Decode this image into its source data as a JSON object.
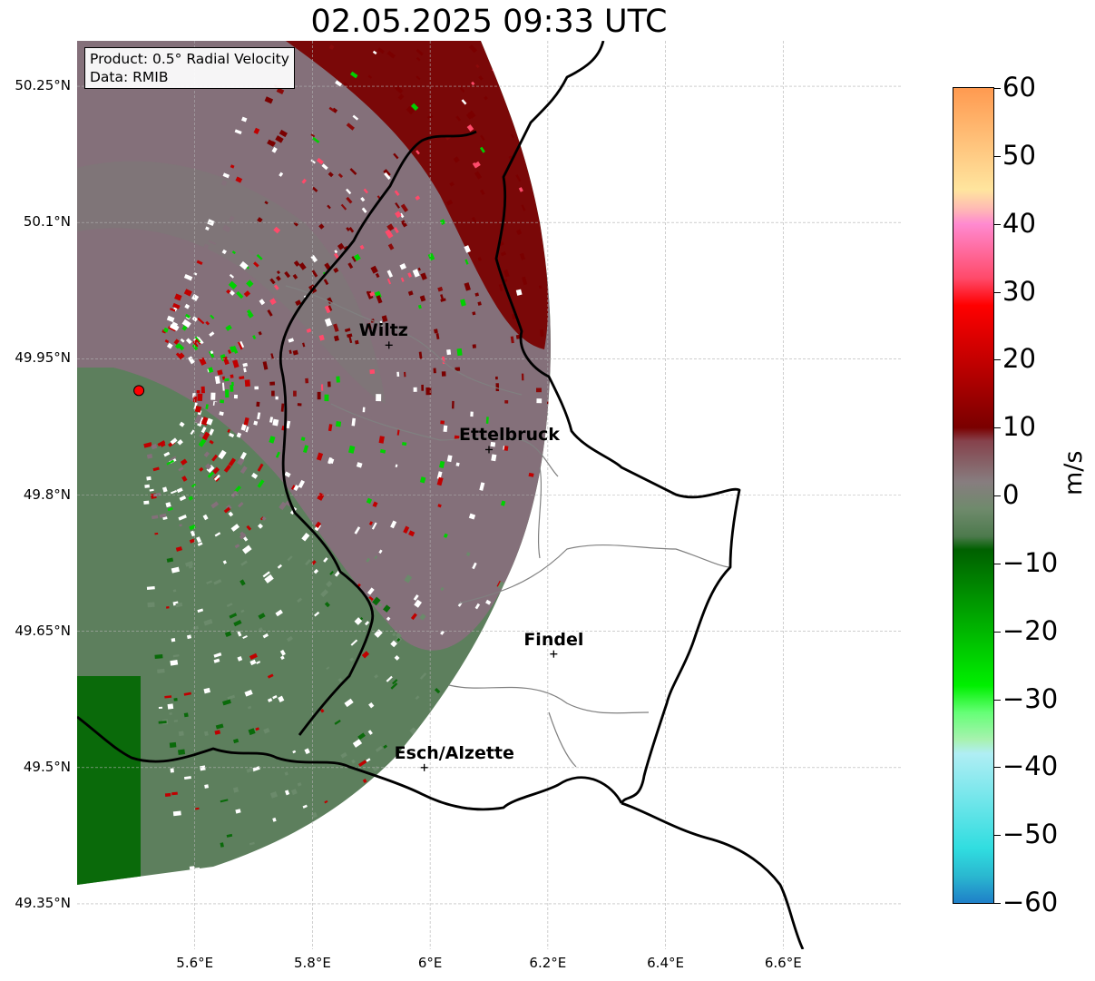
{
  "title": "02.05.2025 09:33 UTC",
  "info": {
    "product": "Product: 0.5° Radial Velocity",
    "source": "Data: RMIB"
  },
  "map": {
    "lon_range": [
      5.4,
      6.8
    ],
    "lat_range": [
      49.3,
      50.3
    ],
    "radar_site": {
      "lon": 5.505,
      "lat": 49.915
    },
    "lat_ticks": [
      {
        "value": 50.25,
        "label": "50.25°N"
      },
      {
        "value": 50.1,
        "label": "50.1°N"
      },
      {
        "value": 49.95,
        "label": "49.95°N"
      },
      {
        "value": 49.8,
        "label": "49.8°N"
      },
      {
        "value": 49.65,
        "label": "49.65°N"
      },
      {
        "value": 49.5,
        "label": "49.5°N"
      },
      {
        "value": 49.35,
        "label": "49.35°N"
      }
    ],
    "lon_ticks": [
      {
        "value": 5.6,
        "label": "5.6°E"
      },
      {
        "value": 5.8,
        "label": "5.8°E"
      },
      {
        "value": 6.0,
        "label": "6°E"
      },
      {
        "value": 6.2,
        "label": "6.2°E"
      },
      {
        "value": 6.4,
        "label": "6.4°E"
      },
      {
        "value": 6.6,
        "label": "6.6°E"
      }
    ],
    "cities": [
      {
        "name": "Wiltz",
        "lon": 5.93,
        "lat": 49.965
      },
      {
        "name": "Ettelbruck",
        "lon": 6.1,
        "lat": 49.85
      },
      {
        "name": "Findel",
        "lon": 6.21,
        "lat": 49.625
      },
      {
        "name": "Esch/Alzette",
        "lon": 5.99,
        "lat": 49.5
      }
    ],
    "colors": {
      "border": "#000000",
      "canton": "#808080",
      "grid": "#b0b0b0",
      "site": "#ff0000"
    }
  },
  "colorbar": {
    "unit": "m/s",
    "min": -60,
    "max": 60,
    "ticks": [
      {
        "value": 60,
        "label": "60"
      },
      {
        "value": 50,
        "label": "50"
      },
      {
        "value": 40,
        "label": "40"
      },
      {
        "value": 30,
        "label": "30"
      },
      {
        "value": 20,
        "label": "20"
      },
      {
        "value": 10,
        "label": "10"
      },
      {
        "value": 0,
        "label": "0"
      },
      {
        "value": -10,
        "label": "−10"
      },
      {
        "value": -20,
        "label": "−20"
      },
      {
        "value": -30,
        "label": "−30"
      },
      {
        "value": -40,
        "label": "−40"
      },
      {
        "value": -50,
        "label": "−50"
      },
      {
        "value": -60,
        "label": "−60"
      }
    ],
    "stops": [
      {
        "value": 60,
        "color": "#ff9a50"
      },
      {
        "value": 50,
        "color": "#ffcc85"
      },
      {
        "value": 45,
        "color": "#ffe59e"
      },
      {
        "value": 42,
        "color": "#ffb6b6"
      },
      {
        "value": 40,
        "color": "#ff8ad0"
      },
      {
        "value": 32,
        "color": "#ff4a6a"
      },
      {
        "value": 28,
        "color": "#ff0000"
      },
      {
        "value": 10,
        "color": "#7a0000"
      },
      {
        "value": 8,
        "color": "#86424c"
      },
      {
        "value": 2,
        "color": "#877d7f"
      },
      {
        "value": -2,
        "color": "#6f8a6c"
      },
      {
        "value": -6,
        "color": "#4d7a4d"
      },
      {
        "value": -8,
        "color": "#006000"
      },
      {
        "value": -28,
        "color": "#00f000"
      },
      {
        "value": -32,
        "color": "#66ff77"
      },
      {
        "value": -36,
        "color": "#a8f2b0"
      },
      {
        "value": -38,
        "color": "#b0eef4"
      },
      {
        "value": -52,
        "color": "#30dde0"
      },
      {
        "value": -56,
        "color": "#2ab8d0"
      },
      {
        "value": -60,
        "color": "#1f7fc8"
      }
    ]
  }
}
